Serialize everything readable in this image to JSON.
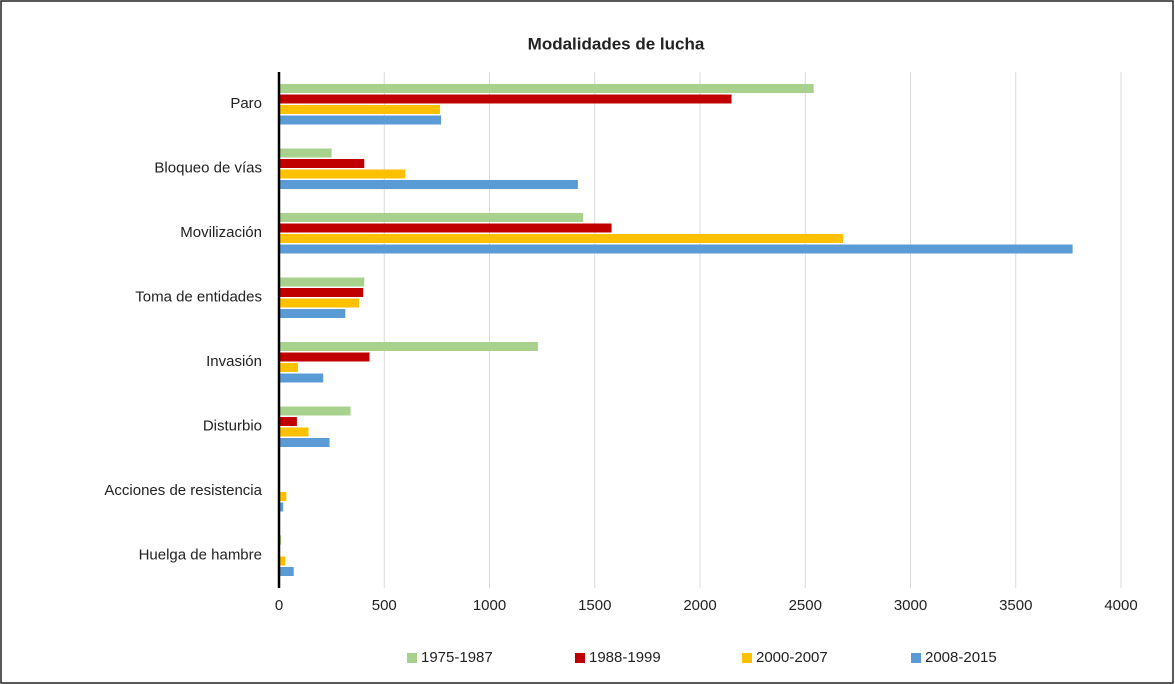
{
  "chart_data": {
    "type": "hbar",
    "title": "Modalidades de lucha",
    "categories": [
      "Paro",
      "Bloqueo de vías",
      "Movilización",
      "Toma de entidades",
      "Invasión",
      "Disturbio",
      "Acciones de resistencia",
      "Huelga de hambre"
    ],
    "series": [
      {
        "name": "1975-1987",
        "color": "#a9d18e",
        "values": [
          2540,
          250,
          1445,
          405,
          1230,
          340,
          0,
          10
        ]
      },
      {
        "name": "1988-1999",
        "color": "#c00000",
        "values": [
          2150,
          405,
          1580,
          400,
          430,
          85,
          0,
          0
        ]
      },
      {
        "name": "2000-2007",
        "color": "#ffc000",
        "values": [
          765,
          600,
          2680,
          380,
          90,
          140,
          35,
          30
        ]
      },
      {
        "name": "2008-2015",
        "color": "#5b9bd5",
        "values": [
          770,
          1420,
          3770,
          315,
          210,
          240,
          20,
          70
        ]
      }
    ],
    "xlim": [
      0,
      4000
    ],
    "xticks": [
      0,
      500,
      1000,
      1500,
      2000,
      2500,
      3000,
      3500,
      4000
    ],
    "grid": true,
    "legend": "bottom"
  }
}
